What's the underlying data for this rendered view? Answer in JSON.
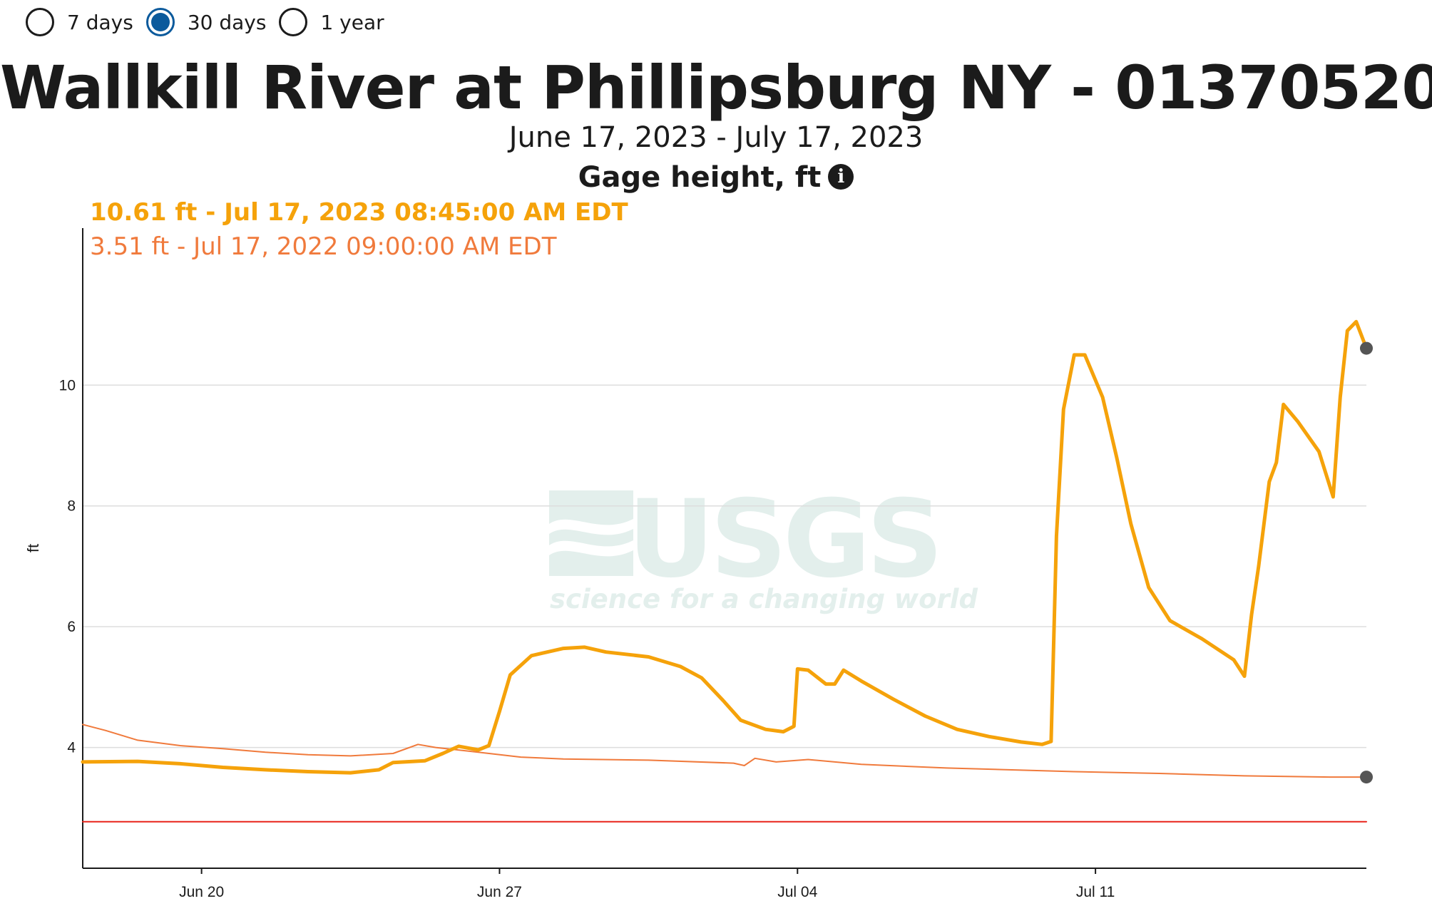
{
  "period_options": [
    {
      "label": "7 days",
      "checked": false
    },
    {
      "label": "30 days",
      "checked": true
    },
    {
      "label": "1 year",
      "checked": false
    }
  ],
  "title": "Wallkill River at Phillipsburg NY - 01370520",
  "date_range": "June 17, 2023 - July 17, 2023",
  "parameter": "Gage height, ft",
  "tooltip": {
    "current": "10.61 ft - Jul 17, 2023 08:45:00 AM EDT",
    "previous": "3.51 ft - Jul 17, 2022 09:00:00 AM EDT"
  },
  "watermark": {
    "logo_text": "USGS",
    "tagline": "science for a changing world"
  },
  "colors": {
    "current": "#f5a20a",
    "previous": "#f07a3c",
    "threshold": "#e8231a",
    "marker": "#555555",
    "grid": "#dddddd",
    "radio_accent": "#0b5a9c"
  },
  "chart_data": {
    "type": "line",
    "title": "Wallkill River at Phillipsburg NY - 01370520",
    "subtitle": "June 17, 2023 - July 17, 2023",
    "xlabel": "",
    "ylabel": "ft",
    "xlim": [
      "2023-06-17T05:00",
      "2023-07-17T08:45"
    ],
    "ylim": [
      2.0,
      12.6
    ],
    "yticks": [
      4,
      6,
      8,
      10
    ],
    "xticks": [
      {
        "date": "2023-06-20T00:00",
        "label": "Jun 20"
      },
      {
        "date": "2023-06-27T00:00",
        "label": "Jun 27"
      },
      {
        "date": "2023-07-04T00:00",
        "label": "Jul 04"
      },
      {
        "date": "2023-07-11T00:00",
        "label": "Jul 11"
      }
    ],
    "grid": true,
    "series": [
      {
        "key": "current",
        "points": [
          [
            "2023-06-17T05:00",
            3.76
          ],
          [
            "2023-06-18T12:00",
            3.77
          ],
          [
            "2023-06-19T12:00",
            3.73
          ],
          [
            "2023-06-20T12:00",
            3.67
          ],
          [
            "2023-06-21T12:00",
            3.63
          ],
          [
            "2023-06-22T12:00",
            3.6
          ],
          [
            "2023-06-23T12:00",
            3.58
          ],
          [
            "2023-06-24T04:00",
            3.63
          ],
          [
            "2023-06-24T12:00",
            3.75
          ],
          [
            "2023-06-25T06:00",
            3.78
          ],
          [
            "2023-06-25T16:00",
            3.9
          ],
          [
            "2023-06-26T01:00",
            4.02
          ],
          [
            "2023-06-26T12:00",
            3.96
          ],
          [
            "2023-06-26T18:00",
            4.03
          ],
          [
            "2023-06-27T00:00",
            4.6
          ],
          [
            "2023-06-27T06:00",
            5.2
          ],
          [
            "2023-06-27T18:00",
            5.52
          ],
          [
            "2023-06-28T12:00",
            5.64
          ],
          [
            "2023-06-29T00:00",
            5.66
          ],
          [
            "2023-06-29T12:00",
            5.58
          ],
          [
            "2023-06-30T12:00",
            5.5
          ],
          [
            "2023-07-01T06:00",
            5.34
          ],
          [
            "2023-07-01T18:00",
            5.15
          ],
          [
            "2023-07-02T06:00",
            4.78
          ],
          [
            "2023-07-02T16:00",
            4.45
          ],
          [
            "2023-07-03T06:00",
            4.3
          ],
          [
            "2023-07-03T16:00",
            4.26
          ],
          [
            "2023-07-03T22:00",
            4.35
          ],
          [
            "2023-07-04T00:00",
            5.3
          ],
          [
            "2023-07-04T06:00",
            5.28
          ],
          [
            "2023-07-04T16:00",
            5.05
          ],
          [
            "2023-07-04T21:00",
            5.05
          ],
          [
            "2023-07-05T02:00",
            5.28
          ],
          [
            "2023-07-05T12:00",
            5.1
          ],
          [
            "2023-07-06T06:00",
            4.8
          ],
          [
            "2023-07-07T00:00",
            4.52
          ],
          [
            "2023-07-07T18:00",
            4.3
          ],
          [
            "2023-07-08T12:00",
            4.18
          ],
          [
            "2023-07-09T06:00",
            4.09
          ],
          [
            "2023-07-09T18:00",
            4.05
          ],
          [
            "2023-07-09T23:00",
            4.1
          ],
          [
            "2023-07-10T02:00",
            7.5
          ],
          [
            "2023-07-10T06:00",
            9.6
          ],
          [
            "2023-07-10T12:00",
            10.5
          ],
          [
            "2023-07-10T18:00",
            10.5
          ],
          [
            "2023-07-11T04:00",
            9.8
          ],
          [
            "2023-07-11T12:00",
            8.8
          ],
          [
            "2023-07-11T20:00",
            7.7
          ],
          [
            "2023-07-12T06:00",
            6.65
          ],
          [
            "2023-07-12T18:00",
            6.1
          ],
          [
            "2023-07-13T12:00",
            5.8
          ],
          [
            "2023-07-14T06:00",
            5.45
          ],
          [
            "2023-07-14T12:00",
            5.18
          ],
          [
            "2023-07-14T16:00",
            6.2
          ],
          [
            "2023-07-14T20:00",
            7.0
          ],
          [
            "2023-07-15T02:00",
            8.4
          ],
          [
            "2023-07-15T06:00",
            8.72
          ],
          [
            "2023-07-15T10:00",
            9.68
          ],
          [
            "2023-07-15T18:00",
            9.4
          ],
          [
            "2023-07-16T06:00",
            8.9
          ],
          [
            "2023-07-16T14:00",
            8.15
          ],
          [
            "2023-07-16T18:00",
            9.8
          ],
          [
            "2023-07-16T22:00",
            10.9
          ],
          [
            "2023-07-17T03:00",
            11.05
          ],
          [
            "2023-07-17T08:45",
            10.61
          ]
        ]
      },
      {
        "key": "previous",
        "points": [
          [
            "2023-06-17T05:00",
            4.38
          ],
          [
            "2023-06-17T18:00",
            4.28
          ],
          [
            "2023-06-18T12:00",
            4.12
          ],
          [
            "2023-06-19T12:00",
            4.03
          ],
          [
            "2023-06-20T12:00",
            3.98
          ],
          [
            "2023-06-21T12:00",
            3.92
          ],
          [
            "2023-06-22T12:00",
            3.88
          ],
          [
            "2023-06-23T12:00",
            3.86
          ],
          [
            "2023-06-24T12:00",
            3.9
          ],
          [
            "2023-06-25T02:00",
            4.05
          ],
          [
            "2023-06-25T12:00",
            4.0
          ],
          [
            "2023-06-26T12:00",
            3.92
          ],
          [
            "2023-06-27T12:00",
            3.84
          ],
          [
            "2023-06-28T12:00",
            3.81
          ],
          [
            "2023-06-30T12:00",
            3.79
          ],
          [
            "2023-07-02T12:00",
            3.74
          ],
          [
            "2023-07-02T18:00",
            3.7
          ],
          [
            "2023-07-03T00:00",
            3.82
          ],
          [
            "2023-07-03T12:00",
            3.76
          ],
          [
            "2023-07-04T06:00",
            3.8
          ],
          [
            "2023-07-05T12:00",
            3.72
          ],
          [
            "2023-07-07T12:00",
            3.66
          ],
          [
            "2023-07-10T12:00",
            3.6
          ],
          [
            "2023-07-12T12:00",
            3.57
          ],
          [
            "2023-07-14T12:00",
            3.53
          ],
          [
            "2023-07-16T12:00",
            3.51
          ],
          [
            "2023-07-17T08:45",
            3.51
          ]
        ]
      },
      {
        "key": "threshold",
        "points": [
          [
            "2023-06-17T05:00",
            2.77
          ],
          [
            "2023-07-17T08:45",
            2.77
          ]
        ]
      }
    ],
    "markers": [
      {
        "series": "current",
        "date": "2023-07-17T08:45",
        "value": 10.61
      },
      {
        "series": "previous",
        "date": "2023-07-17T08:45",
        "value": 3.51
      }
    ]
  }
}
